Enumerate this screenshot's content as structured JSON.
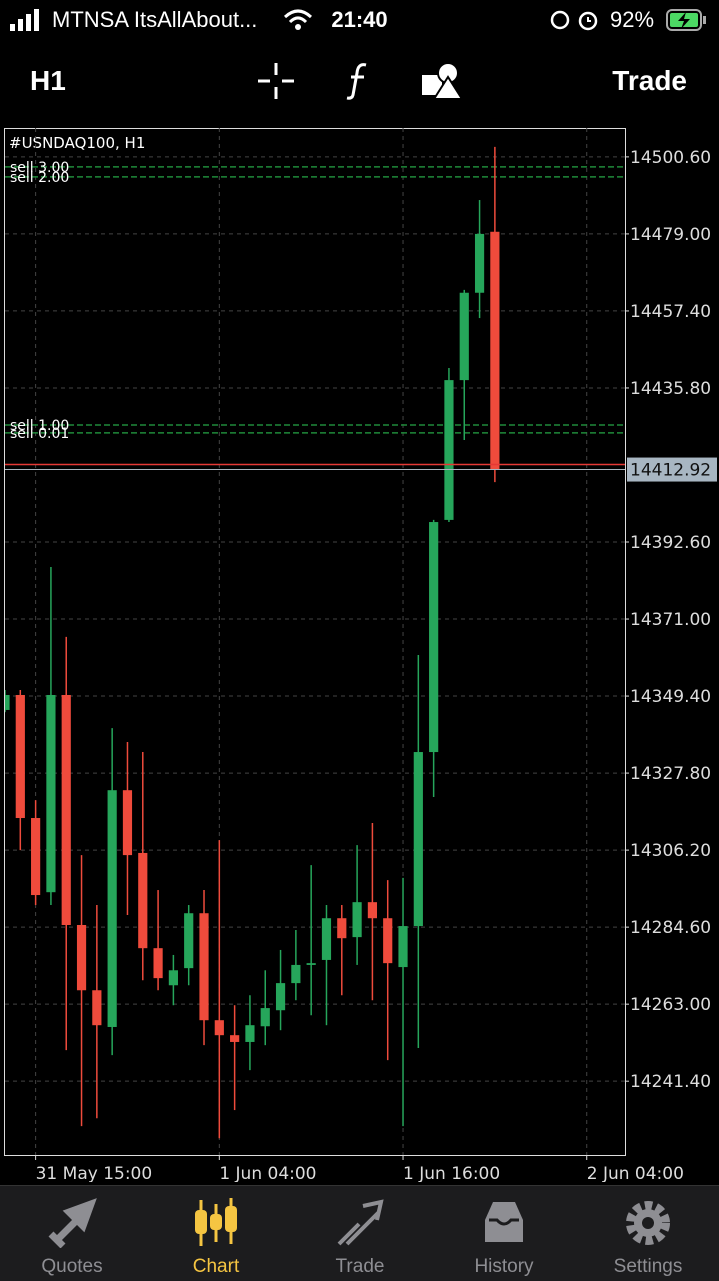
{
  "status_bar": {
    "carrier": "MTNSA ItsAllAbout...",
    "time": "21:40",
    "battery": "92%"
  },
  "toolbar": {
    "timeframe": "H1",
    "trade": "Trade"
  },
  "chart_data": {
    "type": "candlestick",
    "title": "#USNDAQ100, H1",
    "up_color": "#26a65b",
    "down_color": "#ef4b3c",
    "open": [
      14345.5,
      14349.7,
      14315.2,
      14294.4,
      14349.7,
      14285.2,
      14266.9,
      14256.6,
      14323.0,
      14305.4,
      14278.7,
      14268.3,
      14273.1,
      14288.5,
      14258.5,
      14254.3,
      14252.4,
      14256.8,
      14261.3,
      14268.9,
      14274.0,
      14275.4,
      14287.1,
      14281.8,
      14291.6,
      14287.1,
      14273.4,
      14284.9,
      14333.7,
      14398.8,
      14438.0,
      14462.5,
      14479.6
    ],
    "high": [
      14351.1,
      14351.1,
      14320.2,
      14385.6,
      14366.0,
      14304.8,
      14290.8,
      14340.4,
      14336.5,
      14333.7,
      14295.0,
      14276.8,
      14290.8,
      14295.0,
      14309.0,
      14262.7,
      14265.5,
      14272.5,
      14278.2,
      14283.8,
      14302.0,
      14290.8,
      14290.8,
      14307.6,
      14313.8,
      14297.8,
      14298.4,
      14360.9,
      14398.8,
      14441.4,
      14463.3,
      14488.5,
      14503.4
    ],
    "low": [
      14344.9,
      14306.2,
      14290.8,
      14290.8,
      14250.1,
      14228.8,
      14231.0,
      14248.7,
      14288.0,
      14269.7,
      14266.9,
      14262.7,
      14268.3,
      14251.5,
      14225.4,
      14233.3,
      14244.5,
      14251.5,
      14255.7,
      14264.1,
      14259.9,
      14257.1,
      14265.5,
      14274.0,
      14264.1,
      14247.3,
      14228.8,
      14250.7,
      14321.1,
      14398.2,
      14421.2,
      14455.4,
      14409.4
    ],
    "close": [
      14349.7,
      14315.2,
      14293.6,
      14349.7,
      14285.2,
      14266.9,
      14257.1,
      14323.0,
      14304.8,
      14278.7,
      14270.3,
      14272.5,
      14288.5,
      14258.5,
      14254.3,
      14252.4,
      14257.1,
      14261.9,
      14268.9,
      14274.0,
      14274.5,
      14287.1,
      14281.5,
      14291.6,
      14287.1,
      14274.5,
      14284.9,
      14333.7,
      14398.2,
      14438.0,
      14462.5,
      14479.0,
      14412.9
    ],
    "xlim": [
      0,
      40.5
    ],
    "xticks": [
      {
        "value": 2,
        "label": "31 May 15:00"
      },
      {
        "value": 14,
        "label": "1 Jun 04:00"
      },
      {
        "value": 26,
        "label": "1 Jun 16:00"
      },
      {
        "value": 38,
        "label": "2 Jun 04:00"
      }
    ],
    "ylim": [
      14220.7,
      14508.7
    ],
    "yticks": [
      {
        "value": 14500.6,
        "label": "14500.60"
      },
      {
        "value": 14479,
        "label": "14479.00"
      },
      {
        "value": 14457.4,
        "label": "14457.40"
      },
      {
        "value": 14435.8,
        "label": "14435.80"
      },
      {
        "value": 14392.6,
        "label": "14392.60"
      },
      {
        "value": 14371,
        "label": "14371.00"
      },
      {
        "value": 14349.4,
        "label": "14349.40"
      },
      {
        "value": 14327.8,
        "label": "14327.80"
      },
      {
        "value": 14306.2,
        "label": "14306.20"
      },
      {
        "value": 14284.6,
        "label": "14284.60"
      },
      {
        "value": 14263,
        "label": "14263.00"
      },
      {
        "value": 14241.4,
        "label": "14241.40"
      }
    ],
    "grid": true,
    "current_price": {
      "value": 14412.92,
      "label": "14412.92"
    },
    "orders": [
      {
        "label": "sell 3.00",
        "value": 14497.8,
        "color": "#1f8a3a"
      },
      {
        "label": "sell 2.00",
        "value": 14495.0,
        "color": "#1f8a3a"
      },
      {
        "label": "sell 1.00",
        "value": 14425.4,
        "color": "#1f8a3a"
      },
      {
        "label": "sell 0.01",
        "value": 14423.2,
        "color": "#1f8a3a"
      }
    ]
  },
  "tab_bar": {
    "tabs": [
      "Quotes",
      "Chart",
      "Trade",
      "History",
      "Settings"
    ]
  }
}
